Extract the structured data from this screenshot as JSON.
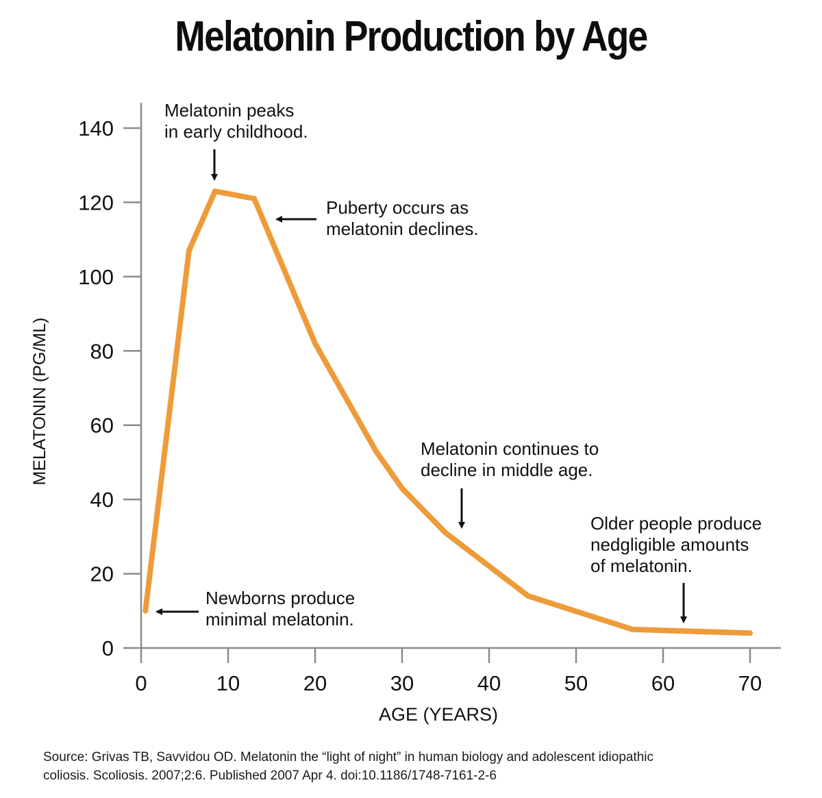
{
  "page_title": "Melatonin Production by Age",
  "source": {
    "line1": "Source: Grivas TB, Savvidou OD. Melatonin the “light of night” in human biology and adolescent idiopathic",
    "line2": "coliosis. Scoliosis. 2007;2:6. Published 2007 Apr 4. doi:10.1186/1748-7161-2-6"
  },
  "colors": {
    "line": "#EE9B3A",
    "axis": "#8a8a8a",
    "text": "#111111"
  },
  "chart_data": {
    "type": "line",
    "title": "Melatonin Production by Age",
    "xlabel": "AGE (YEARS)",
    "ylabel": "MELATONIN (PG/ML)",
    "xlim": [
      0,
      72
    ],
    "ylim": [
      0,
      145
    ],
    "x_ticks": [
      0,
      10,
      20,
      30,
      40,
      50,
      60,
      70
    ],
    "y_ticks": [
      0,
      20,
      40,
      60,
      80,
      100,
      120,
      140
    ],
    "grid": false,
    "series": [
      {
        "name": "Melatonin",
        "x": [
          0.5,
          5.5,
          8.5,
          13,
          20,
          27,
          30,
          35,
          44.5,
          56.5,
          70
        ],
        "y": [
          10,
          107,
          123,
          121,
          82,
          53,
          43,
          31,
          14,
          5,
          4
        ]
      }
    ],
    "annotations": [
      {
        "id": "peak",
        "lines": [
          "Melatonin peaks",
          "in early childhood."
        ],
        "arrow": "down",
        "target_x": 8.5,
        "target_y": 123
      },
      {
        "id": "puberty",
        "lines": [
          "Puberty occurs as",
          "melatonin declines."
        ],
        "arrow": "left",
        "target_x": 15.5,
        "target_y": 115
      },
      {
        "id": "middle",
        "lines": [
          "Melatonin continues to",
          "decline in middle age."
        ],
        "arrow": "down",
        "target_x": 37,
        "target_y": 32
      },
      {
        "id": "older",
        "lines": [
          "Older people produce",
          "nedgligible amounts",
          "of melatonin."
        ],
        "arrow": "down",
        "target_x": 62.5,
        "target_y": 6
      },
      {
        "id": "newborn",
        "lines": [
          "Newborns produce",
          "minimal melatonin."
        ],
        "arrow": "left",
        "target_x": 1.5,
        "target_y": 10
      }
    ]
  }
}
